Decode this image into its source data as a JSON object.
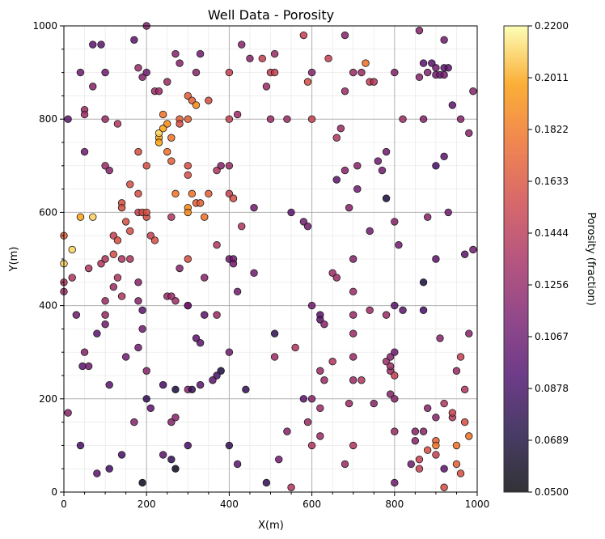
{
  "chart_data": {
    "type": "scatter",
    "title": "Well Data - Porosity",
    "xlabel": "X(m)",
    "ylabel": "Y(m)",
    "xlim": [
      0,
      1000
    ],
    "ylim": [
      0,
      1000
    ],
    "x_ticks": [
      0,
      200,
      400,
      600,
      800,
      1000
    ],
    "y_ticks": [
      0,
      200,
      400,
      600,
      800,
      1000
    ],
    "grid": true,
    "colorbar": {
      "label": "Porosity (fraction)",
      "range": [
        0.05,
        0.22
      ],
      "colormap": "inferno",
      "ticks": [
        "0.0500",
        "0.0689",
        "0.0878",
        "0.1067",
        "0.1256",
        "0.1444",
        "0.1633",
        "0.1822",
        "0.2011",
        "0.2200"
      ]
    },
    "points": [
      [
        10,
        800,
        0.1
      ],
      [
        40,
        900,
        0.11
      ],
      [
        50,
        820,
        0.13
      ],
      [
        50,
        810,
        0.13
      ],
      [
        50,
        730,
        0.11
      ],
      [
        70,
        960,
        0.1
      ],
      [
        70,
        870,
        0.12
      ],
      [
        90,
        960,
        0.1
      ],
      [
        100,
        900,
        0.11
      ],
      [
        100,
        800,
        0.13
      ],
      [
        100,
        700,
        0.13
      ],
      [
        110,
        690,
        0.12
      ],
      [
        130,
        790,
        0.14
      ],
      [
        170,
        970,
        0.1
      ],
      [
        180,
        910,
        0.13
      ],
      [
        190,
        890,
        0.12
      ],
      [
        200,
        1000,
        0.12
      ],
      [
        200,
        900,
        0.11
      ],
      [
        220,
        860,
        0.13
      ],
      [
        230,
        860,
        0.13
      ],
      [
        250,
        880,
        0.13
      ],
      [
        270,
        940,
        0.12
      ],
      [
        280,
        920,
        0.12
      ],
      [
        320,
        900,
        0.12
      ],
      [
        330,
        940,
        0.11
      ],
      [
        400,
        900,
        0.15
      ],
      [
        400,
        800,
        0.15
      ],
      [
        420,
        810,
        0.13
      ],
      [
        430,
        960,
        0.12
      ],
      [
        450,
        930,
        0.12
      ],
      [
        480,
        930,
        0.15
      ],
      [
        490,
        870,
        0.13
      ],
      [
        500,
        900,
        0.15
      ],
      [
        510,
        940,
        0.13
      ],
      [
        510,
        900,
        0.15
      ],
      [
        500,
        800,
        0.13
      ],
      [
        540,
        800,
        0.13
      ],
      [
        580,
        980,
        0.15
      ],
      [
        590,
        880,
        0.16
      ],
      [
        600,
        800,
        0.15
      ],
      [
        600,
        900,
        0.12
      ],
      [
        640,
        930,
        0.15
      ],
      [
        680,
        980,
        0.12
      ],
      [
        680,
        860,
        0.13
      ],
      [
        700,
        900,
        0.13
      ],
      [
        720,
        900,
        0.13
      ],
      [
        730,
        920,
        0.18
      ],
      [
        740,
        880,
        0.15
      ],
      [
        750,
        880,
        0.14
      ],
      [
        800,
        900,
        0.12
      ],
      [
        820,
        800,
        0.13
      ],
      [
        860,
        990,
        0.12
      ],
      [
        860,
        890,
        0.12
      ],
      [
        870,
        800,
        0.12
      ],
      [
        870,
        920,
        0.1
      ],
      [
        880,
        900,
        0.12
      ],
      [
        890,
        920,
        0.1
      ],
      [
        900,
        910,
        0.11
      ],
      [
        900,
        895,
        0.11
      ],
      [
        910,
        895,
        0.11
      ],
      [
        920,
        895,
        0.11
      ],
      [
        920,
        910,
        0.1
      ],
      [
        930,
        910,
        0.1
      ],
      [
        920,
        970,
        0.11
      ],
      [
        940,
        830,
        0.1
      ],
      [
        990,
        860,
        0.12
      ],
      [
        980,
        770,
        0.12
      ],
      [
        140,
        620,
        0.16
      ],
      [
        140,
        610,
        0.16
      ],
      [
        160,
        660,
        0.16
      ],
      [
        180,
        640,
        0.16
      ],
      [
        180,
        600,
        0.15
      ],
      [
        180,
        730,
        0.16
      ],
      [
        190,
        600,
        0.16
      ],
      [
        200,
        700,
        0.16
      ],
      [
        200,
        590,
        0.16
      ],
      [
        200,
        600,
        0.16
      ],
      [
        210,
        550,
        0.15
      ],
      [
        220,
        540,
        0.16
      ],
      [
        230,
        760,
        0.2
      ],
      [
        230,
        770,
        0.21
      ],
      [
        240,
        780,
        0.2
      ],
      [
        240,
        810,
        0.18
      ],
      [
        250,
        790,
        0.19
      ],
      [
        250,
        730,
        0.18
      ],
      [
        260,
        760,
        0.18
      ],
      [
        230,
        750,
        0.2
      ],
      [
        260,
        710,
        0.17
      ],
      [
        260,
        590,
        0.14
      ],
      [
        270,
        640,
        0.18
      ],
      [
        280,
        800,
        0.17
      ],
      [
        280,
        790,
        0.16
      ],
      [
        300,
        850,
        0.17
      ],
      [
        310,
        840,
        0.17
      ],
      [
        320,
        830,
        0.19
      ],
      [
        300,
        800,
        0.17
      ],
      [
        300,
        700,
        0.16
      ],
      [
        300,
        680,
        0.16
      ],
      [
        300,
        610,
        0.19
      ],
      [
        300,
        600,
        0.19
      ],
      [
        300,
        500,
        0.16
      ],
      [
        310,
        640,
        0.18
      ],
      [
        320,
        620,
        0.17
      ],
      [
        330,
        620,
        0.17
      ],
      [
        340,
        590,
        0.18
      ],
      [
        350,
        640,
        0.17
      ],
      [
        350,
        840,
        0.16
      ],
      [
        370,
        690,
        0.14
      ],
      [
        380,
        700,
        0.12
      ],
      [
        400,
        700,
        0.13
      ],
      [
        400,
        640,
        0.15
      ],
      [
        410,
        630,
        0.16
      ],
      [
        40,
        590,
        0.2
      ],
      [
        70,
        590,
        0.21
      ],
      [
        20,
        520,
        0.21
      ],
      [
        0,
        550,
        0.17
      ],
      [
        0,
        490,
        0.21
      ],
      [
        0,
        450,
        0.14
      ],
      [
        0,
        430,
        0.13
      ],
      [
        20,
        460,
        0.14
      ],
      [
        60,
        480,
        0.14
      ],
      [
        90,
        490,
        0.14
      ],
      [
        100,
        500,
        0.14
      ],
      [
        120,
        510,
        0.16
      ],
      [
        120,
        550,
        0.15
      ],
      [
        130,
        540,
        0.16
      ],
      [
        140,
        500,
        0.14
      ],
      [
        160,
        500,
        0.14
      ],
      [
        150,
        580,
        0.16
      ],
      [
        160,
        560,
        0.16
      ],
      [
        30,
        380,
        0.11
      ],
      [
        50,
        300,
        0.12
      ],
      [
        100,
        410,
        0.13
      ],
      [
        100,
        380,
        0.13
      ],
      [
        130,
        460,
        0.14
      ],
      [
        120,
        440,
        0.13
      ],
      [
        140,
        420,
        0.14
      ],
      [
        180,
        450,
        0.12
      ],
      [
        180,
        410,
        0.12
      ],
      [
        190,
        390,
        0.1
      ],
      [
        190,
        350,
        0.11
      ],
      [
        150,
        290,
        0.11
      ],
      [
        180,
        310,
        0.11
      ],
      [
        100,
        360,
        0.11
      ],
      [
        80,
        340,
        0.1
      ],
      [
        60,
        270,
        0.11
      ],
      [
        45,
        270,
        0.1
      ],
      [
        110,
        230,
        0.1
      ],
      [
        200,
        260,
        0.12
      ],
      [
        10,
        170,
        0.12
      ],
      [
        40,
        100,
        0.09
      ],
      [
        80,
        40,
        0.1
      ],
      [
        110,
        50,
        0.09
      ],
      [
        140,
        80,
        0.09
      ],
      [
        170,
        150,
        0.12
      ],
      [
        190,
        20,
        0.06
      ],
      [
        200,
        200,
        0.08
      ],
      [
        210,
        180,
        0.1
      ],
      [
        240,
        230,
        0.09
      ],
      [
        240,
        80,
        0.1
      ],
      [
        260,
        70,
        0.08
      ],
      [
        260,
        150,
        0.12
      ],
      [
        270,
        50,
        0.06
      ],
      [
        270,
        220,
        0.07
      ],
      [
        270,
        160,
        0.12
      ],
      [
        300,
        100,
        0.09
      ],
      [
        300,
        220,
        0.12
      ],
      [
        310,
        220,
        0.08
      ],
      [
        300,
        400,
        0.11
      ],
      [
        300,
        400,
        0.11
      ],
      [
        280,
        480,
        0.12
      ],
      [
        250,
        420,
        0.13
      ],
      [
        260,
        420,
        0.13
      ],
      [
        270,
        410,
        0.13
      ],
      [
        320,
        330,
        0.1
      ],
      [
        330,
        320,
        0.1
      ],
      [
        340,
        380,
        0.1
      ],
      [
        340,
        460,
        0.12
      ],
      [
        370,
        380,
        0.13
      ],
      [
        370,
        530,
        0.14
      ],
      [
        380,
        260,
        0.07
      ],
      [
        370,
        250,
        0.09
      ],
      [
        360,
        240,
        0.1
      ],
      [
        330,
        230,
        0.1
      ],
      [
        400,
        300,
        0.11
      ],
      [
        400,
        100,
        0.08
      ],
      [
        400,
        500,
        0.11
      ],
      [
        410,
        500,
        0.11
      ],
      [
        410,
        490,
        0.11
      ],
      [
        420,
        430,
        0.11
      ],
      [
        420,
        60,
        0.1
      ],
      [
        430,
        570,
        0.14
      ],
      [
        440,
        220,
        0.08
      ],
      [
        460,
        470,
        0.11
      ],
      [
        460,
        610,
        0.11
      ],
      [
        490,
        20,
        0.08
      ],
      [
        510,
        340,
        0.08
      ],
      [
        510,
        290,
        0.13
      ],
      [
        520,
        70,
        0.11
      ],
      [
        540,
        130,
        0.12
      ],
      [
        550,
        10,
        0.14
      ],
      [
        550,
        600,
        0.1
      ],
      [
        560,
        310,
        0.14
      ],
      [
        580,
        580,
        0.11
      ],
      [
        580,
        200,
        0.1
      ],
      [
        590,
        570,
        0.11
      ],
      [
        590,
        150,
        0.13
      ],
      [
        600,
        400,
        0.11
      ],
      [
        600,
        200,
        0.12
      ],
      [
        600,
        100,
        0.14
      ],
      [
        620,
        260,
        0.13
      ],
      [
        620,
        380,
        0.1
      ],
      [
        620,
        370,
        0.1
      ],
      [
        630,
        360,
        0.12
      ],
      [
        620,
        120,
        0.13
      ],
      [
        620,
        180,
        0.13
      ],
      [
        630,
        240,
        0.13
      ],
      [
        650,
        280,
        0.14
      ],
      [
        650,
        470,
        0.13
      ],
      [
        660,
        460,
        0.13
      ],
      [
        660,
        760,
        0.14
      ],
      [
        670,
        780,
        0.13
      ],
      [
        660,
        670,
        0.1
      ],
      [
        680,
        690,
        0.12
      ],
      [
        690,
        610,
        0.12
      ],
      [
        700,
        500,
        0.12
      ],
      [
        700,
        430,
        0.13
      ],
      [
        700,
        240,
        0.13
      ],
      [
        690,
        190,
        0.13
      ],
      [
        680,
        60,
        0.13
      ],
      [
        700,
        100,
        0.14
      ],
      [
        700,
        290,
        0.13
      ],
      [
        700,
        340,
        0.13
      ],
      [
        700,
        380,
        0.13
      ],
      [
        710,
        650,
        0.11
      ],
      [
        710,
        700,
        0.12
      ],
      [
        720,
        240,
        0.14
      ],
      [
        740,
        560,
        0.11
      ],
      [
        740,
        390,
        0.13
      ],
      [
        750,
        190,
        0.12
      ],
      [
        760,
        710,
        0.11
      ],
      [
        770,
        690,
        0.11
      ],
      [
        780,
        630,
        0.07
      ],
      [
        780,
        730,
        0.11
      ],
      [
        780,
        380,
        0.13
      ],
      [
        780,
        280,
        0.13
      ],
      [
        790,
        210,
        0.12
      ],
      [
        790,
        260,
        0.13
      ],
      [
        790,
        270,
        0.13
      ],
      [
        800,
        250,
        0.15
      ],
      [
        790,
        290,
        0.12
      ],
      [
        800,
        300,
        0.11
      ],
      [
        800,
        200,
        0.12
      ],
      [
        800,
        580,
        0.12
      ],
      [
        800,
        400,
        0.1
      ],
      [
        800,
        20,
        0.11
      ],
      [
        800,
        130,
        0.13
      ],
      [
        810,
        530,
        0.11
      ],
      [
        820,
        390,
        0.1
      ],
      [
        840,
        60,
        0.11
      ],
      [
        850,
        110,
        0.12
      ],
      [
        850,
        130,
        0.12
      ],
      [
        860,
        70,
        0.15
      ],
      [
        860,
        50,
        0.15
      ],
      [
        870,
        450,
        0.07
      ],
      [
        870,
        390,
        0.09
      ],
      [
        870,
        130,
        0.12
      ],
      [
        880,
        90,
        0.16
      ],
      [
        880,
        590,
        0.12
      ],
      [
        880,
        180,
        0.12
      ],
      [
        900,
        700,
        0.09
      ],
      [
        900,
        110,
        0.17
      ],
      [
        900,
        100,
        0.18
      ],
      [
        900,
        80,
        0.15
      ],
      [
        900,
        500,
        0.1
      ],
      [
        900,
        160,
        0.12
      ],
      [
        910,
        330,
        0.12
      ],
      [
        920,
        50,
        0.1
      ],
      [
        920,
        720,
        0.1
      ],
      [
        920,
        10,
        0.16
      ],
      [
        920,
        190,
        0.14
      ],
      [
        930,
        600,
        0.11
      ],
      [
        940,
        160,
        0.14
      ],
      [
        940,
        170,
        0.15
      ],
      [
        950,
        100,
        0.18
      ],
      [
        950,
        260,
        0.13
      ],
      [
        950,
        60,
        0.17
      ],
      [
        960,
        290,
        0.15
      ],
      [
        960,
        40,
        0.16
      ],
      [
        970,
        150,
        0.16
      ],
      [
        970,
        220,
        0.14
      ],
      [
        980,
        120,
        0.18
      ],
      [
        980,
        340,
        0.12
      ],
      [
        990,
        520,
        0.11
      ],
      [
        970,
        510,
        0.1
      ],
      [
        960,
        800,
        0.12
      ]
    ]
  }
}
